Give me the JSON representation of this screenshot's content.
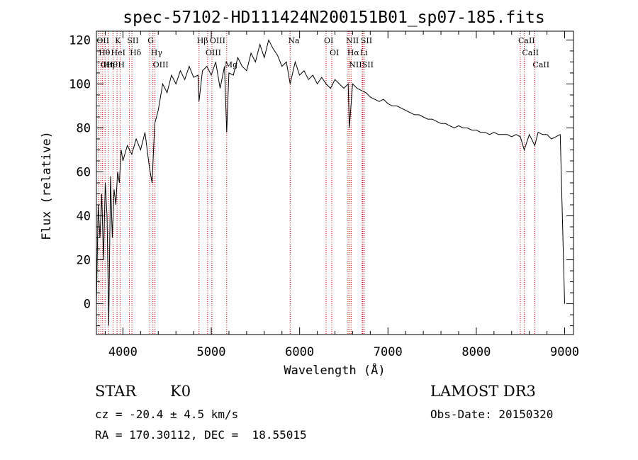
{
  "chart_data": {
    "type": "line",
    "title": "spec-57102-HD111424N200151B01_sp07-185.fits",
    "xlabel": "Wavelength (Å)",
    "ylabel": "Flux (relative)",
    "xlim": [
      3700,
      9100
    ],
    "ylim": [
      -14,
      124
    ],
    "xticks": [
      4000,
      5000,
      6000,
      7000,
      8000,
      9000
    ],
    "yticks": [
      0,
      20,
      40,
      60,
      80,
      100,
      120
    ],
    "grid": false,
    "series": [
      {
        "name": "spectrum",
        "color": "#000000",
        "x": [
          3700,
          3720,
          3740,
          3760,
          3780,
          3800,
          3820,
          3840,
          3860,
          3880,
          3900,
          3920,
          3940,
          3960,
          3980,
          4000,
          4050,
          4100,
          4150,
          4200,
          4250,
          4300,
          4330,
          4360,
          4400,
          4450,
          4500,
          4550,
          4600,
          4650,
          4700,
          4750,
          4800,
          4850,
          4861,
          4900,
          4950,
          5000,
          5050,
          5100,
          5150,
          5175,
          5200,
          5250,
          5300,
          5350,
          5400,
          5450,
          5500,
          5550,
          5600,
          5650,
          5700,
          5750,
          5800,
          5850,
          5893,
          5950,
          6000,
          6050,
          6100,
          6150,
          6200,
          6250,
          6300,
          6350,
          6400,
          6450,
          6500,
          6550,
          6563,
          6600,
          6650,
          6700,
          6750,
          6800,
          6850,
          6900,
          6950,
          7000,
          7050,
          7100,
          7150,
          7200,
          7250,
          7300,
          7350,
          7400,
          7450,
          7500,
          7550,
          7600,
          7650,
          7700,
          7750,
          7800,
          7850,
          7900,
          7950,
          8000,
          8050,
          8100,
          8150,
          8200,
          8250,
          8300,
          8350,
          8400,
          8450,
          8498,
          8542,
          8600,
          8662,
          8700,
          8750,
          8800,
          8850,
          8900,
          8950,
          9000
        ],
        "values": [
          0,
          45,
          30,
          50,
          20,
          55,
          40,
          -10,
          58,
          30,
          52,
          45,
          60,
          55,
          70,
          65,
          72,
          68,
          75,
          70,
          78,
          62,
          55,
          82,
          88,
          100,
          96,
          104,
          100,
          106,
          102,
          108,
          103,
          104,
          92,
          106,
          108,
          104,
          110,
          98,
          108,
          78,
          105,
          104,
          112,
          108,
          106,
          114,
          110,
          118,
          112,
          120,
          116,
          113,
          108,
          110,
          100,
          110,
          104,
          106,
          102,
          104,
          100,
          103,
          100,
          98,
          102,
          100,
          98,
          100,
          80,
          100,
          98,
          97,
          96,
          94,
          93,
          92,
          93,
          91,
          90,
          90,
          89,
          88,
          87,
          86,
          86,
          85,
          84,
          84,
          83,
          82,
          82,
          81,
          80,
          81,
          80,
          80,
          79,
          79,
          78,
          78,
          77,
          78,
          77,
          77,
          77,
          76,
          77,
          76,
          70,
          77,
          72,
          78,
          77,
          77,
          75,
          76,
          77,
          0
        ]
      }
    ],
    "lines": [
      {
        "wavelength": 3727,
        "label": "OII"
      },
      {
        "wavelength": 3750,
        "label": "Hθ"
      },
      {
        "wavelength": 3771,
        "label": "OII"
      },
      {
        "wavelength": 3798,
        "label": "Hη"
      },
      {
        "wavelength": 3835,
        "label": "Hθ"
      },
      {
        "wavelength": 3889,
        "label": "HeI"
      },
      {
        "wavelength": 3934,
        "label": "K"
      },
      {
        "wavelength": 3968,
        "label": "H"
      },
      {
        "wavelength": 4072,
        "label": "SII"
      },
      {
        "wavelength": 4102,
        "label": "Hδ"
      },
      {
        "wavelength": 4304,
        "label": "G"
      },
      {
        "wavelength": 4340,
        "label": "Hγ"
      },
      {
        "wavelength": 4363,
        "label": "OIII"
      },
      {
        "wavelength": 4861,
        "label": "Hβ"
      },
      {
        "wavelength": 4959,
        "label": "OIII"
      },
      {
        "wavelength": 5007,
        "label": "OIII"
      },
      {
        "wavelength": 5175,
        "label": "Mg"
      },
      {
        "wavelength": 5893,
        "label": "Na"
      },
      {
        "wavelength": 6300,
        "label": "OI"
      },
      {
        "wavelength": 6364,
        "label": "OI"
      },
      {
        "wavelength": 6548,
        "label": "NII"
      },
      {
        "wavelength": 6563,
        "label": "Hα"
      },
      {
        "wavelength": 6583,
        "label": "NII"
      },
      {
        "wavelength": 6708,
        "label": "Li"
      },
      {
        "wavelength": 6716,
        "label": "SII"
      },
      {
        "wavelength": 6731,
        "label": "SII"
      },
      {
        "wavelength": 8498,
        "label": "CaII"
      },
      {
        "wavelength": 8542,
        "label": "CaII"
      },
      {
        "wavelength": 8662,
        "label": "CaII"
      }
    ]
  },
  "info": {
    "class": "STAR",
    "subclass": "K0",
    "cz": "cz = -20.4 ± 4.5 km/s",
    "radec": "RA = 170.30112, DEC =  18.55015",
    "survey": "LAMOST DR3",
    "obs_date": "Obs-Date: 20150320"
  }
}
